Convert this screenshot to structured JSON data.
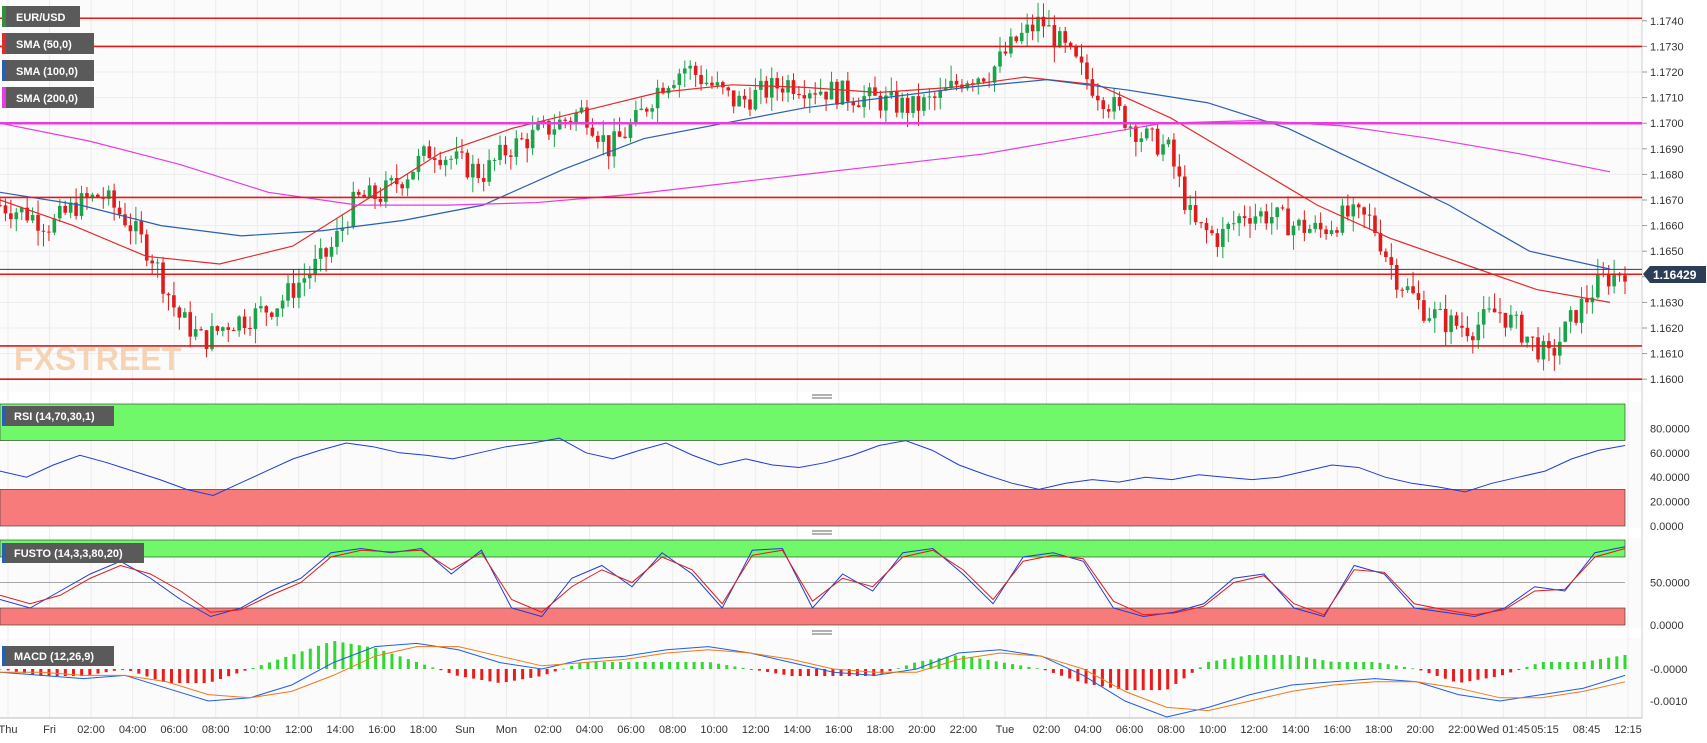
{
  "symbol": "EUR/USD",
  "watermark": "FXSTREET",
  "last_price_label": "1.16429",
  "colors": {
    "up": "#1aa34a",
    "down": "#e01b1b",
    "sma50": "#e32a2a",
    "sma100": "#2a5fb0",
    "sma200": "#e83be0",
    "level": "#e01818",
    "rsi_line": "#1f3bd6",
    "fusto_k": "#1f3bd6",
    "fusto_d": "#e01b1b",
    "macd_line": "#1f5fe0",
    "signal_line": "#f07a1a",
    "zone_green": "#71f76a",
    "zone_red": "#f77b7b",
    "tag_bg": "#5a5a5a"
  },
  "legend": [
    {
      "label": "EUR/USD",
      "swatch": "#2f8f3a"
    },
    {
      "label": "SMA (50,0)",
      "swatch": "#e32a2a"
    },
    {
      "label": "SMA (100,0)",
      "swatch": "#2a5fb0"
    },
    {
      "label": "SMA (200,0)",
      "swatch": "#e83be0"
    }
  ],
  "x_ticks": [
    "Thu",
    "Fri",
    "02:00",
    "04:00",
    "06:00",
    "08:00",
    "10:00",
    "12:00",
    "14:00",
    "16:00",
    "18:00",
    "Sun",
    "Mon",
    "02:00",
    "04:00",
    "06:00",
    "08:00",
    "10:00",
    "12:00",
    "14:00",
    "16:00",
    "18:00",
    "20:00",
    "22:00",
    "Tue",
    "02:00",
    "04:00",
    "06:00",
    "08:00",
    "10:00",
    "12:00",
    "14:00",
    "16:00",
    "18:00",
    "20:00",
    "22:00",
    "Wed 01:45",
    "05:15",
    "08:45",
    "12:15"
  ],
  "chart_data": [
    {
      "type": "candlestick",
      "title": "EUR/USD",
      "ylim": [
        1.1595,
        1.1745
      ],
      "y_ticks": [
        "1.1600",
        "1.1610",
        "1.1620",
        "1.1630",
        "1.1640",
        "1.1650",
        "1.1660",
        "1.1670",
        "1.1680",
        "1.1690",
        "1.1700",
        "1.1710",
        "1.1720",
        "1.1730",
        "1.1740"
      ],
      "close_path": [
        1.1668,
        1.1665,
        1.166,
        1.1668,
        1.1672,
        1.1662,
        1.1648,
        1.1625,
        1.1615,
        1.1622,
        1.1625,
        1.163,
        1.164,
        1.165,
        1.167,
        1.1672,
        1.168,
        1.169,
        1.1685,
        1.168,
        1.169,
        1.1695,
        1.17,
        1.1705,
        1.169,
        1.17,
        1.1715,
        1.1722,
        1.1715,
        1.1708,
        1.1712,
        1.1716,
        1.1714,
        1.1712,
        1.171,
        1.1708,
        1.1706,
        1.171,
        1.1718,
        1.172,
        1.1732,
        1.174,
        1.1728,
        1.1715,
        1.1705,
        1.1695,
        1.169,
        1.166,
        1.1655,
        1.1665,
        1.1664,
        1.166,
        1.1658,
        1.1664,
        1.1662,
        1.164,
        1.1628,
        1.1622,
        1.162,
        1.1627,
        1.1618,
        1.1608,
        1.1625,
        1.1638,
        1.1643
      ],
      "overlays": [
        {
          "name": "SMA (50,0)",
          "values": [
            1.167,
            1.166,
            1.1648,
            1.1645,
            1.1652,
            1.167,
            1.1688,
            1.1698,
            1.1705,
            1.1712,
            1.1715,
            1.1714,
            1.1712,
            1.1714,
            1.1718,
            1.1715,
            1.1702,
            1.1685,
            1.1668,
            1.1655,
            1.1645,
            1.1635,
            1.163
          ]
        },
        {
          "name": "SMA (100,0)",
          "values": [
            1.1673,
            1.1668,
            1.166,
            1.1656,
            1.1658,
            1.1662,
            1.1668,
            1.1682,
            1.1694,
            1.17,
            1.1706,
            1.171,
            1.1714,
            1.1717,
            1.1713,
            1.1708,
            1.1698,
            1.1683,
            1.1668,
            1.165,
            1.1643
          ]
        },
        {
          "name": "SMA (200,0)",
          "values": [
            1.17,
            1.1693,
            1.1684,
            1.1673,
            1.1668,
            1.1668,
            1.1669,
            1.1672,
            1.1676,
            1.168,
            1.1684,
            1.1688,
            1.1694,
            1.17,
            1.1701,
            1.1699,
            1.1694,
            1.1688,
            1.1681
          ]
        }
      ],
      "horizontal_levels": [
        1.1741,
        1.173,
        1.17,
        1.1671,
        1.1641,
        1.1613,
        1.16
      ],
      "last_price": 1.16429
    },
    {
      "type": "line",
      "title": "RSI (14,70,30,1)",
      "ylim": [
        0,
        100
      ],
      "y_ticks": [
        "0.0000",
        "20.0000",
        "40.0000",
        "60.0000",
        "80.0000"
      ],
      "zones": {
        "upper": 70,
        "lower": 30
      },
      "values": [
        45,
        40,
        50,
        58,
        52,
        45,
        38,
        30,
        25,
        35,
        45,
        55,
        62,
        68,
        65,
        60,
        58,
        55,
        60,
        65,
        68,
        72,
        60,
        55,
        62,
        68,
        58,
        50,
        55,
        50,
        48,
        52,
        58,
        66,
        70,
        62,
        50,
        42,
        35,
        30,
        35,
        38,
        36,
        40,
        38,
        42,
        40,
        38,
        40,
        45,
        50,
        48,
        40,
        35,
        32,
        28,
        35,
        40,
        45,
        55,
        62,
        66
      ]
    },
    {
      "type": "line",
      "title": "FUSTO (14,3,3,80,20)",
      "ylim": [
        0,
        100
      ],
      "y_ticks": [
        "0.0000",
        "50.0000"
      ],
      "zones": {
        "upper": 80,
        "lower": 20
      },
      "series": [
        {
          "name": "K",
          "values": [
            30,
            20,
            40,
            60,
            75,
            55,
            30,
            10,
            20,
            40,
            55,
            85,
            90,
            85,
            90,
            60,
            88,
            20,
            10,
            55,
            70,
            45,
            85,
            60,
            20,
            88,
            90,
            20,
            60,
            40,
            85,
            90,
            60,
            25,
            80,
            85,
            75,
            20,
            10,
            15,
            25,
            55,
            60,
            20,
            10,
            70,
            60,
            20,
            15,
            10,
            20,
            45,
            40,
            85,
            92
          ]
        },
        {
          "name": "D",
          "values": [
            35,
            25,
            35,
            55,
            70,
            60,
            40,
            15,
            18,
            35,
            50,
            80,
            88,
            86,
            88,
            65,
            85,
            30,
            15,
            45,
            65,
            50,
            80,
            65,
            25,
            82,
            88,
            28,
            55,
            45,
            80,
            88,
            65,
            30,
            75,
            82,
            78,
            28,
            12,
            14,
            22,
            50,
            58,
            25,
            12,
            65,
            62,
            25,
            18,
            12,
            18,
            40,
            42,
            80,
            90
          ]
        }
      ]
    },
    {
      "type": "line",
      "title": "MACD (12,26,9)",
      "y_ticks": [
        "-0.0000",
        "-0.0010"
      ],
      "series": [
        {
          "name": "MACD",
          "values": [
            -0.0001,
            -0.0002,
            -0.0003,
            -0.0002,
            -0.0006,
            -0.001,
            -0.0009,
            -0.0005,
            0.0002,
            0.0007,
            0.0008,
            0.0006,
            0.0002,
            0.0,
            0.0003,
            0.0004,
            0.0006,
            0.0007,
            0.0005,
            0.0002,
            -0.0001,
            -0.0002,
            0.0,
            0.0005,
            0.0006,
            0.0004,
            -0.0002,
            -0.001,
            -0.0015,
            -0.0012,
            -0.0008,
            -0.0005,
            -0.0004,
            -0.0003,
            -0.0004,
            -0.0008,
            -0.001,
            -0.0008,
            -0.0006,
            -0.0002
          ]
        },
        {
          "name": "Signal",
          "values": [
            -0.0001,
            -0.0001,
            -0.0002,
            -0.0002,
            -0.0004,
            -0.0008,
            -0.0009,
            -0.0007,
            -0.0002,
            0.0004,
            0.0007,
            0.0007,
            0.0004,
            0.0001,
            0.0002,
            0.0003,
            0.0005,
            0.0006,
            0.0005,
            0.0003,
            0.0,
            -0.0001,
            -0.0001,
            0.0003,
            0.0005,
            0.0004,
            0.0,
            -0.0007,
            -0.0012,
            -0.0013,
            -0.001,
            -0.0007,
            -0.0005,
            -0.0004,
            -0.0004,
            -0.0006,
            -0.0009,
            -0.0009,
            -0.0007,
            -0.0004
          ]
        }
      ]
    }
  ]
}
